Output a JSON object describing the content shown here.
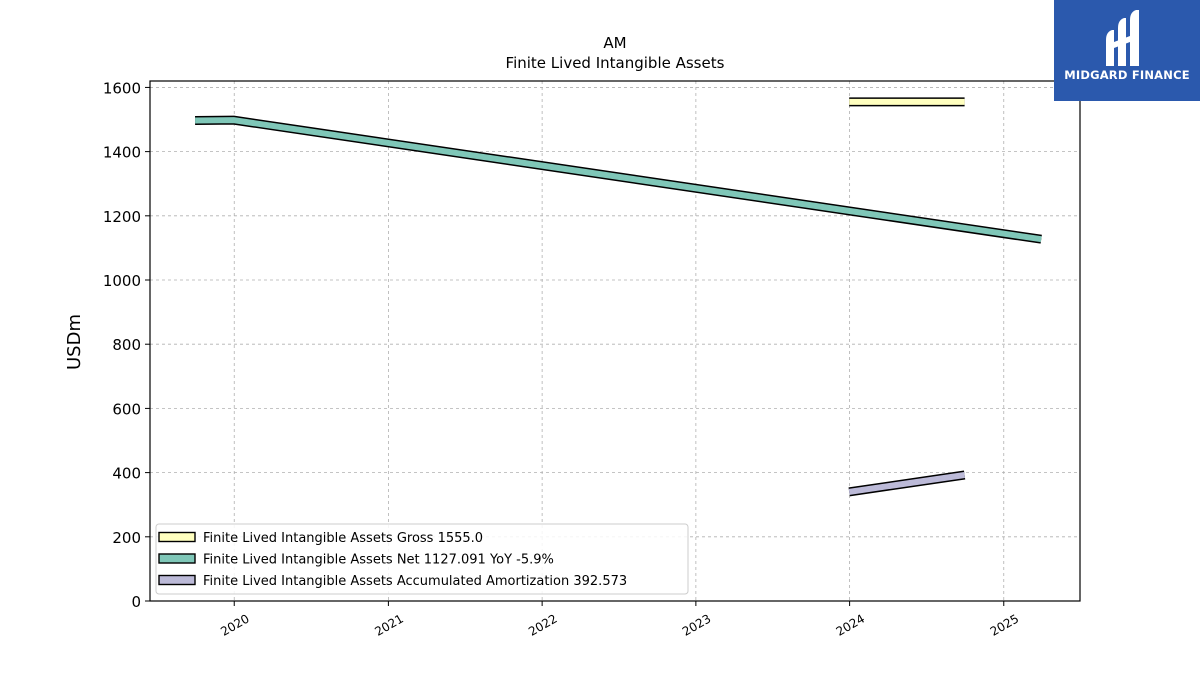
{
  "brand": {
    "name": "MIDGARD FINANCE",
    "color": "#2b59ad"
  },
  "chart_data": {
    "type": "line",
    "title": "AM",
    "subtitle": "Finite Lived Intangible Assets",
    "xlabel": "",
    "ylabel": "USDm",
    "xlim": [
      "2019-06-15",
      "2025-07-01"
    ],
    "ylim": [
      0,
      1620
    ],
    "x_ticks": [
      "2020",
      "2021",
      "2022",
      "2023",
      "2024",
      "2025"
    ],
    "y_ticks": [
      0,
      200,
      400,
      600,
      800,
      1000,
      1200,
      1400,
      1600
    ],
    "grid": true,
    "legend_position": "lower-left",
    "series": [
      {
        "name": "Finite Lived Intangible Assets Gross",
        "legend_label": "Finite Lived Intangible Assets Gross  1555.0",
        "color": "#ffffbf",
        "points": [
          [
            "2023-12-31",
            1555.0
          ],
          [
            "2024-09-30",
            1555.0
          ]
        ]
      },
      {
        "name": "Finite Lived Intangible Assets Net",
        "legend_label": "Finite Lived Intangible Assets Net  1127.091 YoY -5.9%",
        "color": "#7fc7b8",
        "points": [
          [
            "2019-09-30",
            1497
          ],
          [
            "2019-12-31",
            1498
          ],
          [
            "2025-03-31",
            1127.091
          ]
        ]
      },
      {
        "name": "Finite Lived Intangible Assets Accumulated Amortization",
        "legend_label": "Finite Lived Intangible Assets Accumulated Amortization  392.573",
        "color": "#bcbad8",
        "points": [
          [
            "2023-12-31",
            340
          ],
          [
            "2024-09-30",
            392.573
          ]
        ]
      }
    ]
  }
}
